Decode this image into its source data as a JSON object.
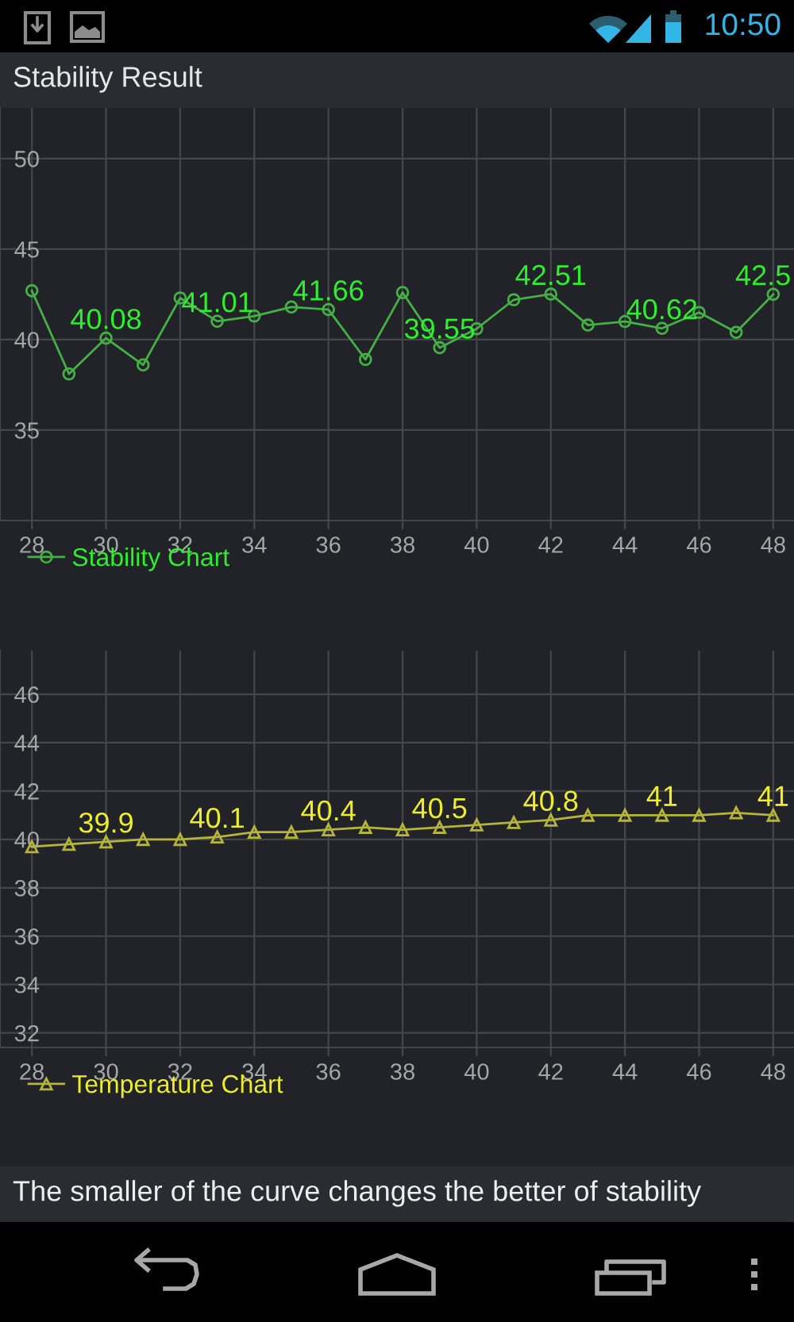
{
  "chart_data": [
    {
      "type": "line",
      "title": "Stability Result",
      "x": [
        28,
        29,
        30,
        31,
        32,
        33,
        34,
        35,
        36,
        37,
        38,
        39,
        40,
        41,
        42,
        43,
        44,
        45,
        46,
        47,
        48
      ],
      "xlim": [
        27.14,
        48.56
      ],
      "xticks": [
        28,
        30,
        32,
        34,
        36,
        38,
        40,
        42,
        44,
        46,
        48
      ],
      "ylim": [
        30,
        52.8
      ],
      "yticks": [
        35,
        40,
        45,
        50
      ],
      "grid": true,
      "legend": "bottom left",
      "marker": "circle",
      "series": [
        {
          "name": "Stability Chart",
          "color": "#45b045",
          "values": [
            42.7,
            38.1,
            40.08,
            38.6,
            42.3,
            41.01,
            41.3,
            41.8,
            41.66,
            38.9,
            42.6,
            39.55,
            40.6,
            42.2,
            42.51,
            40.8,
            41.0,
            40.62,
            41.5,
            40.4,
            42.5
          ],
          "value_labels": [
            null,
            null,
            "40.08",
            null,
            null,
            "41.01",
            null,
            null,
            "41.66",
            null,
            null,
            "39.55",
            null,
            null,
            "42.51",
            null,
            null,
            "40.62",
            null,
            null,
            "42.5"
          ]
        }
      ],
      "annotations": [
        "10:50"
      ]
    },
    {
      "type": "line",
      "x": [
        28,
        29,
        30,
        31,
        32,
        33,
        34,
        35,
        36,
        37,
        38,
        39,
        40,
        41,
        42,
        43,
        44,
        45,
        46,
        47,
        48
      ],
      "xlim": [
        27.14,
        48.56
      ],
      "xticks": [
        28,
        30,
        32,
        34,
        36,
        38,
        40,
        42,
        44,
        46,
        48
      ],
      "ylim": [
        31.4,
        47.8
      ],
      "yticks": [
        32,
        34,
        36,
        38,
        40,
        42,
        44,
        46
      ],
      "grid": true,
      "legend": "bottom left",
      "marker": "triangle",
      "series": [
        {
          "name": "Temperature Chart",
          "color": "#b5b53c",
          "values": [
            39.7,
            39.8,
            39.9,
            40.0,
            40.0,
            40.1,
            40.3,
            40.3,
            40.4,
            40.5,
            40.4,
            40.5,
            40.6,
            40.7,
            40.8,
            41.0,
            41.0,
            41,
            41.0,
            41.1,
            41
          ],
          "value_labels": [
            null,
            null,
            "39.9",
            null,
            null,
            "40.1",
            null,
            null,
            "40.4",
            null,
            null,
            "40.5",
            null,
            null,
            "40.8",
            null,
            null,
            "41",
            null,
            null,
            "41"
          ]
        }
      ],
      "annotations": [
        "The smaller of the curve changes the better of stability"
      ]
    }
  ]
}
